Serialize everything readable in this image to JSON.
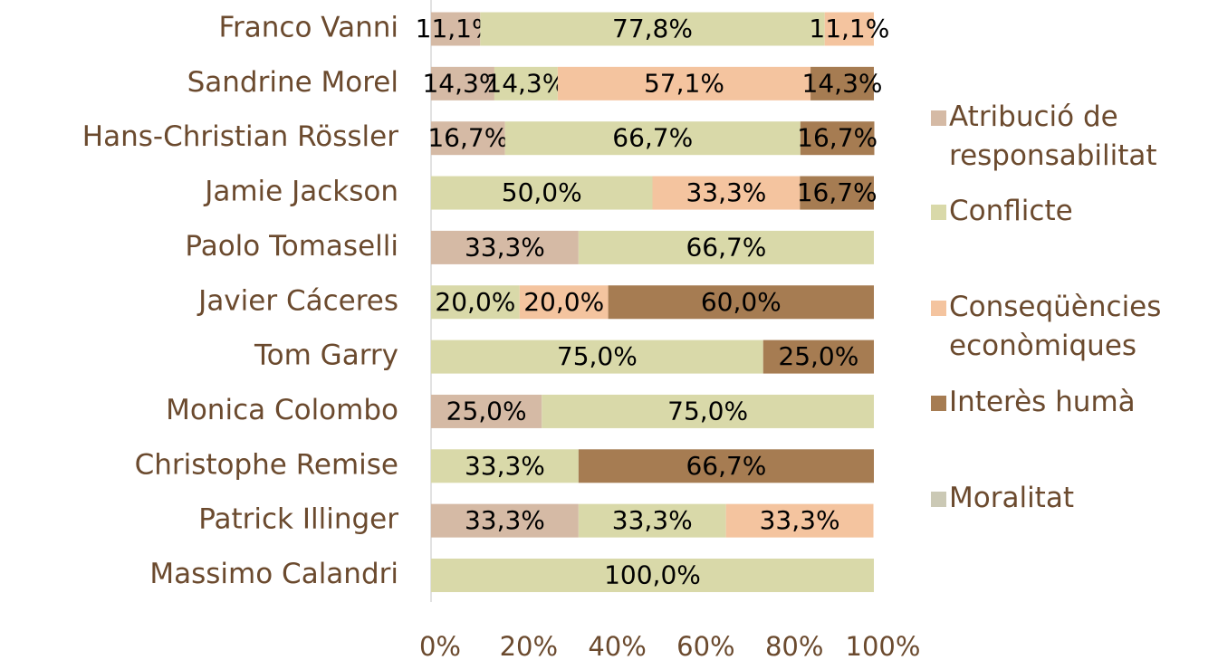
{
  "chart_data": {
    "type": "stacked-barh",
    "categories": [
      "Franco Vanni",
      "Sandrine Morel",
      "Hans-Christian Rössler",
      "Jamie Jackson",
      "Paolo Tomaselli",
      "Javier Cáceres",
      "Tom Garry",
      "Monica Colombo",
      "Christophe Remise",
      "Patrick Illinger",
      "Massimo Calandri"
    ],
    "series": [
      {
        "name": "Atribució de responsabilitat",
        "color": "#d5baa5",
        "values": [
          11.1,
          14.3,
          16.7,
          null,
          33.3,
          null,
          null,
          25.0,
          null,
          33.3,
          null
        ],
        "value_labels": [
          "11,1%",
          "14,3%",
          "16,7%",
          null,
          "33,3%",
          null,
          null,
          "25,0%",
          null,
          "33,3%",
          null
        ]
      },
      {
        "name": "Conflicte",
        "color": "#d9d9a9",
        "values": [
          77.8,
          14.3,
          66.7,
          50.0,
          66.7,
          20.0,
          75.0,
          75.0,
          33.3,
          33.3,
          100.0
        ],
        "value_labels": [
          "77,8%",
          "14,3%",
          "66,7%",
          "50,0%",
          "66,7%",
          "20,0%",
          "75,0%",
          "75,0%",
          "33,3%",
          "33,3%",
          "100,0%"
        ]
      },
      {
        "name": "Conseqüències econòmiques",
        "color": "#f4c49f",
        "values": [
          11.1,
          57.1,
          null,
          33.3,
          null,
          20.0,
          null,
          null,
          null,
          33.3,
          null
        ],
        "value_labels": [
          "11,1%",
          "57,1%",
          null,
          "33,3%",
          null,
          "20,0%",
          null,
          null,
          null,
          "33,3%",
          null
        ]
      },
      {
        "name": "Interès humà",
        "color": "#a67c52",
        "values": [
          null,
          14.3,
          16.7,
          16.7,
          null,
          60.0,
          25.0,
          null,
          66.7,
          null,
          null
        ],
        "value_labels": [
          null,
          "14,3%",
          "16,7%",
          "16,7%",
          null,
          "60,0%",
          "25,0%",
          null,
          "66,7%",
          null,
          null
        ]
      },
      {
        "name": "Moralitat",
        "color": "#cbc9b5",
        "values": [
          null,
          null,
          null,
          null,
          null,
          null,
          null,
          null,
          null,
          null,
          null
        ],
        "value_labels": [
          null,
          null,
          null,
          null,
          null,
          null,
          null,
          null,
          null,
          null,
          null
        ]
      }
    ],
    "xlim": [
      0,
      100
    ],
    "xticks": [
      {
        "value": 0,
        "label": "0%"
      },
      {
        "value": 20,
        "label": "20%"
      },
      {
        "value": 40,
        "label": "40%"
      },
      {
        "value": 60,
        "label": "60%"
      },
      {
        "value": 80,
        "label": "80%"
      },
      {
        "value": 100,
        "label": "100%"
      }
    ]
  }
}
